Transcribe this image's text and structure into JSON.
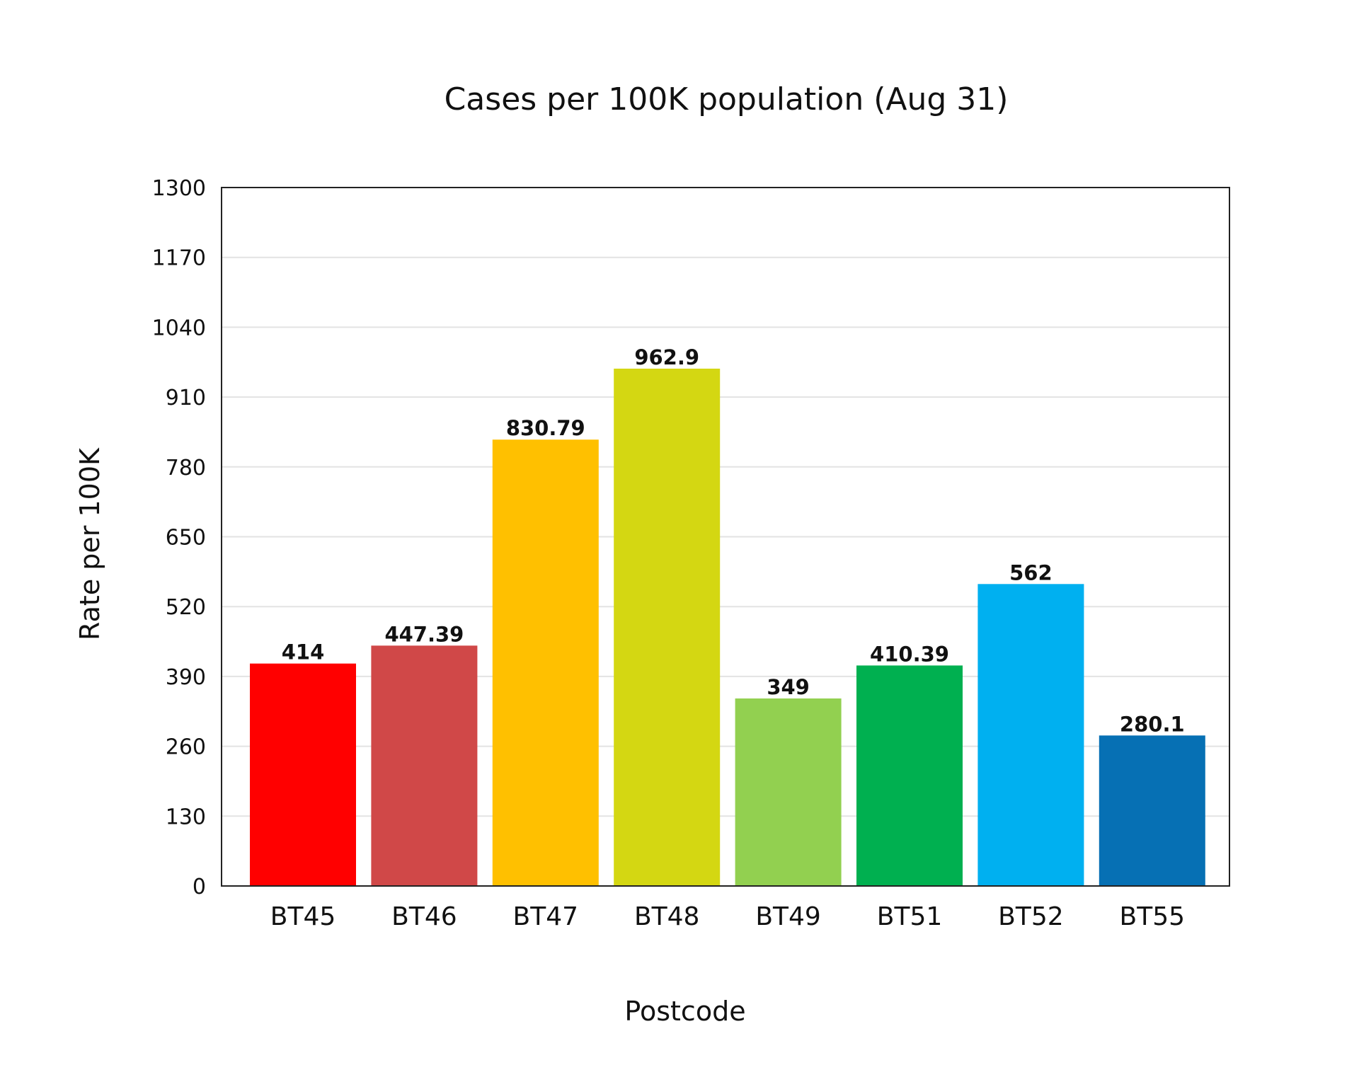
{
  "chart_data": {
    "type": "bar",
    "title": "Cases per 100K population (Aug 31)",
    "xlabel": "Postcode",
    "ylabel": "Rate per 100K",
    "ylim": [
      0,
      1300
    ],
    "yticks": [
      0,
      130,
      260,
      390,
      520,
      650,
      780,
      910,
      1040,
      1170,
      1300
    ],
    "ytick_labels": [
      "0",
      "130",
      "260",
      "390",
      "520",
      "650",
      "780",
      "910",
      "1040",
      "1170",
      "1300"
    ],
    "grid": true,
    "categories": [
      "BT45",
      "BT46",
      "BT47",
      "BT48",
      "BT49",
      "BT51",
      "BT52",
      "BT55"
    ],
    "values": [
      414,
      447.39,
      830.79,
      962.9,
      349,
      410.39,
      562,
      280.1
    ],
    "value_labels": [
      "414",
      "447.39",
      "830.79",
      "962.9",
      "349",
      "410.39",
      "562",
      "280.1"
    ],
    "colors": [
      "#ff0000",
      "#d04848",
      "#ffc000",
      "#d4d712",
      "#92d050",
      "#00b050",
      "#00b0f0",
      "#0670b4"
    ]
  }
}
